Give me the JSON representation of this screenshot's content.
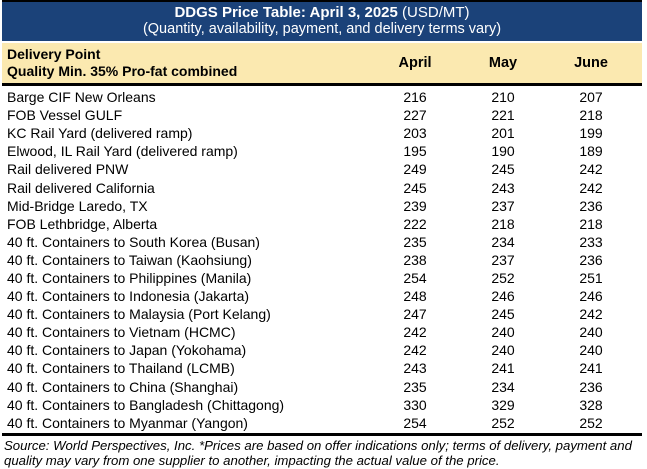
{
  "colors": {
    "header_bg": "#1B4279",
    "header_text": "#FFFFFF",
    "subheader_bg": "#FBE9B0",
    "border": "#000000",
    "row_text": "#000000",
    "page_bg": "#FFFFFF"
  },
  "chart_data": {
    "type": "table",
    "title_bold": "DDGS Price Table: April 3, 2025",
    "title_units": " (USD/MT)",
    "subtitle": "(Quantity, availability, payment, and delivery terms vary)",
    "header": {
      "delivery_point_line1": "Delivery Point",
      "delivery_point_line2": "Quality Min. 35% Pro-fat combined",
      "months": [
        "April",
        "May",
        "June"
      ]
    },
    "rows": [
      {
        "delivery_point": "Barge CIF New Orleans",
        "values": [
          216,
          210,
          207
        ]
      },
      {
        "delivery_point": "FOB Vessel GULF",
        "values": [
          227,
          221,
          218
        ]
      },
      {
        "delivery_point": "KC Rail Yard (delivered ramp)",
        "values": [
          203,
          201,
          199
        ]
      },
      {
        "delivery_point": "Elwood, IL Rail Yard (delivered ramp)",
        "values": [
          195,
          190,
          189
        ]
      },
      {
        "delivery_point": "Rail delivered PNW",
        "values": [
          249,
          245,
          242
        ]
      },
      {
        "delivery_point": "Rail delivered California",
        "values": [
          245,
          243,
          242
        ]
      },
      {
        "delivery_point": "Mid-Bridge Laredo, TX",
        "values": [
          239,
          237,
          236
        ]
      },
      {
        "delivery_point": "FOB Lethbridge, Alberta",
        "values": [
          222,
          218,
          218
        ]
      },
      {
        "delivery_point": "40 ft. Containers to South Korea (Busan)",
        "values": [
          235,
          234,
          233
        ]
      },
      {
        "delivery_point": "40 ft. Containers to Taiwan (Kaohsiung)",
        "values": [
          238,
          237,
          236
        ]
      },
      {
        "delivery_point": "40 ft. Containers to Philippines (Manila)",
        "values": [
          254,
          252,
          251
        ]
      },
      {
        "delivery_point": "40 ft. Containers to Indonesia (Jakarta)",
        "values": [
          248,
          246,
          246
        ]
      },
      {
        "delivery_point": "40 ft. Containers to Malaysia (Port Kelang)",
        "values": [
          247,
          245,
          242
        ]
      },
      {
        "delivery_point": "40 ft. Containers to Vietnam (HCMC)",
        "values": [
          242,
          240,
          240
        ]
      },
      {
        "delivery_point": "40 ft. Containers to Japan (Yokohama)",
        "values": [
          242,
          240,
          240
        ]
      },
      {
        "delivery_point": "40 ft. Containers to Thailand (LCMB)",
        "values": [
          243,
          241,
          241
        ]
      },
      {
        "delivery_point": "40 ft. Containers to China (Shanghai)",
        "values": [
          235,
          234,
          236
        ]
      },
      {
        "delivery_point": "40 ft. Containers to Bangladesh (Chittagong)",
        "values": [
          330,
          329,
          328
        ]
      },
      {
        "delivery_point": "40 ft. Containers to Myanmar (Yangon)",
        "values": [
          254,
          252,
          252
        ]
      }
    ],
    "footer": "Source: World Perspectives, Inc. *Prices are based on offer indications only; terms of delivery, payment and quality may vary from one supplier to another, impacting the actual value of the price."
  }
}
